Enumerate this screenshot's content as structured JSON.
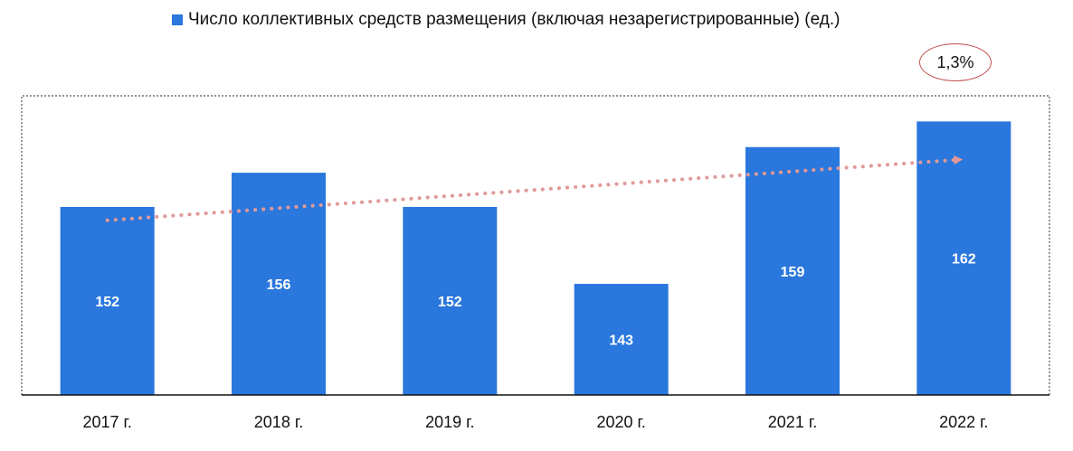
{
  "legend": {
    "label": "Число коллективных средств размещения (включая незарегистрированные) (ед.)"
  },
  "annotation": {
    "growth": "1,3%"
  },
  "colors": {
    "bar": "#2a77dd",
    "trend": "#e09a9a",
    "badge_border": "#c0504d",
    "axis": "#111111",
    "frame": "#555555",
    "value_label": "#ffffff"
  },
  "chart_data": {
    "type": "bar",
    "categories": [
      "2017 г.",
      "2018 г.",
      "2019 г.",
      "2020 г.",
      "2021 г.",
      "2022 г."
    ],
    "series": [
      {
        "name": "Число коллективных средств размещения (включая незарегистрированные) (ед.)",
        "values": [
          152,
          156,
          152,
          143,
          159,
          162
        ]
      }
    ],
    "data_labels": [
      "152",
      "156",
      "152",
      "143",
      "159",
      "162"
    ],
    "trendline": {
      "style": "dotted",
      "arrow": true
    },
    "ylim": [
      130,
      165
    ],
    "grid": false,
    "legend_position": "top"
  }
}
